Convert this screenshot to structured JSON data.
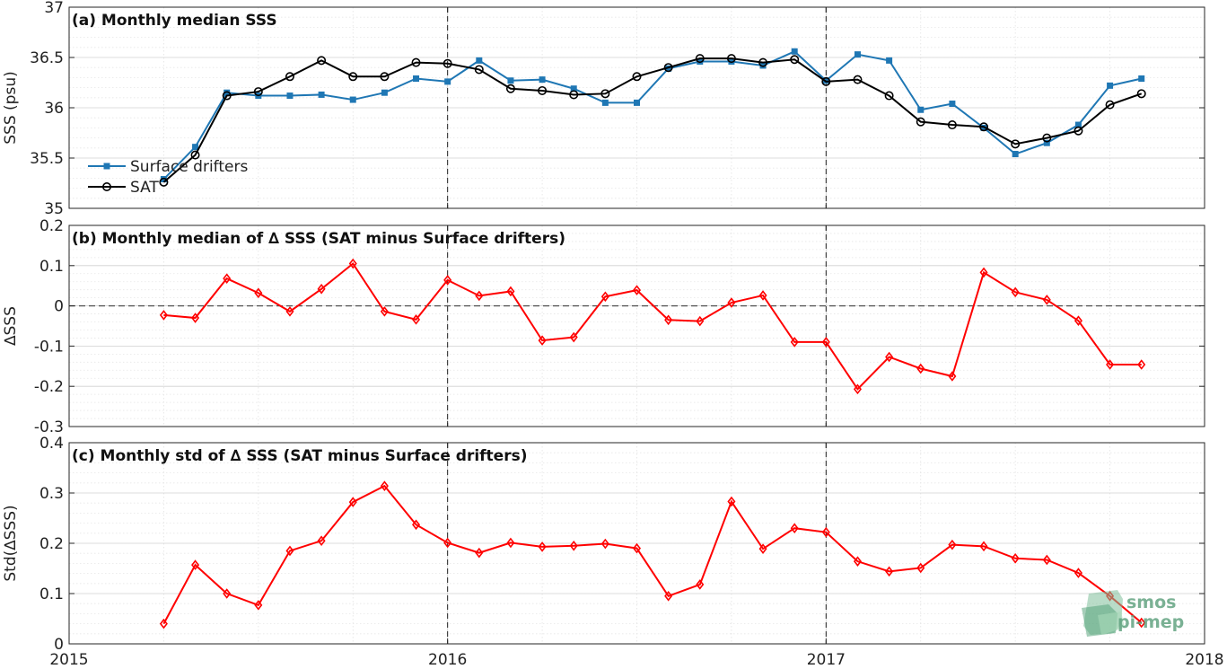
{
  "figure": {
    "x_ticks": [
      "2015",
      "2016",
      "2017",
      "2018"
    ],
    "xlim": [
      2015,
      2018
    ],
    "vlines_at": [
      2016,
      2017
    ],
    "logo": {
      "word1": "smos",
      "word2": "pi-mep"
    }
  },
  "colors": {
    "drifters": "#1F77B4",
    "sat": "#000000",
    "delta": "#FF0000",
    "frame": "#262626"
  },
  "chart_data": [
    {
      "type": "line",
      "title": "(a) Monthly median SSS",
      "ylabel": "SSS (psu)",
      "ylim": [
        35,
        37
      ],
      "y_ticks": [
        "35",
        "35.5",
        "36",
        "36.5",
        "37"
      ],
      "y_tick_values": [
        35,
        35.5,
        36,
        36.5,
        37
      ],
      "x": [
        "2015-04",
        "2015-05",
        "2015-06",
        "2015-07",
        "2015-08",
        "2015-09",
        "2015-10",
        "2015-11",
        "2015-12",
        "2016-01",
        "2016-02",
        "2016-03",
        "2016-04",
        "2016-05",
        "2016-06",
        "2016-07",
        "2016-08",
        "2016-09",
        "2016-10",
        "2016-11",
        "2016-12",
        "2017-01",
        "2017-02",
        "2017-03",
        "2017-04",
        "2017-05",
        "2017-06",
        "2017-07",
        "2017-08",
        "2017-09",
        "2017-10",
        "2017-11"
      ],
      "legend": "left",
      "series": [
        {
          "name": "Surface drifters",
          "marker": "square",
          "values": [
            35.29,
            35.61,
            36.15,
            36.12,
            36.12,
            36.13,
            36.08,
            36.15,
            36.29,
            36.26,
            36.47,
            36.27,
            36.28,
            36.19,
            36.05,
            36.05,
            36.39,
            36.46,
            36.46,
            36.42,
            36.56,
            36.27,
            36.53,
            36.47,
            35.98,
            36.04,
            35.8,
            35.54,
            35.65,
            35.83,
            36.22,
            36.29
          ]
        },
        {
          "name": "SAT",
          "marker": "circle",
          "values": [
            35.26,
            35.53,
            36.12,
            36.16,
            36.31,
            36.47,
            36.31,
            36.31,
            36.45,
            36.44,
            36.38,
            36.19,
            36.17,
            36.13,
            36.14,
            36.31,
            36.4,
            36.49,
            36.49,
            36.45,
            36.48,
            36.26,
            36.28,
            36.12,
            35.86,
            35.83,
            35.81,
            35.64,
            35.7,
            35.77,
            36.03,
            36.14
          ]
        }
      ]
    },
    {
      "type": "line",
      "title": "(b) Monthly median of ∆ SSS (SAT minus Surface drifters)",
      "ylabel": "∆SSS",
      "ylim": [
        -0.3,
        0.2
      ],
      "y_ticks": [
        "-0.3",
        "-0.2",
        "-0.1",
        "0",
        "0.1",
        "0.2"
      ],
      "y_tick_values": [
        -0.3,
        -0.2,
        -0.1,
        0,
        0.1,
        0.2
      ],
      "x": [
        "2015-04",
        "2015-05",
        "2015-06",
        "2015-07",
        "2015-08",
        "2015-09",
        "2015-10",
        "2015-11",
        "2015-12",
        "2016-01",
        "2016-02",
        "2016-03",
        "2016-04",
        "2016-05",
        "2016-06",
        "2016-07",
        "2016-08",
        "2016-09",
        "2016-10",
        "2016-11",
        "2016-12",
        "2017-01",
        "2017-02",
        "2017-03",
        "2017-04",
        "2017-05",
        "2017-06",
        "2017-07",
        "2017-08",
        "2017-09",
        "2017-10",
        "2017-11"
      ],
      "zero_line": true,
      "series": [
        {
          "marker": "diamond",
          "values": [
            -0.023,
            -0.03,
            0.068,
            0.032,
            -0.014,
            0.042,
            0.105,
            -0.014,
            -0.034,
            0.064,
            0.025,
            0.036,
            -0.086,
            -0.078,
            0.023,
            0.039,
            -0.035,
            -0.038,
            0.008,
            0.026,
            -0.09,
            -0.09,
            -0.207,
            -0.127,
            -0.156,
            -0.175,
            0.083,
            0.034,
            0.015,
            -0.037,
            -0.146,
            -0.146
          ]
        }
      ]
    },
    {
      "type": "line",
      "title": "(c) Monthly std of ∆ SSS (SAT minus Surface drifters)",
      "ylabel": "Std(∆SSS)",
      "ylim": [
        0,
        0.4
      ],
      "y_ticks": [
        "0",
        "0.1",
        "0.2",
        "0.3",
        "0.4"
      ],
      "y_tick_values": [
        0,
        0.1,
        0.2,
        0.3,
        0.4
      ],
      "x": [
        "2015-04",
        "2015-05",
        "2015-06",
        "2015-07",
        "2015-08",
        "2015-09",
        "2015-10",
        "2015-11",
        "2015-12",
        "2016-01",
        "2016-02",
        "2016-03",
        "2016-04",
        "2016-05",
        "2016-06",
        "2016-07",
        "2016-08",
        "2016-09",
        "2016-10",
        "2016-11",
        "2016-12",
        "2017-01",
        "2017-02",
        "2017-03",
        "2017-04",
        "2017-05",
        "2017-06",
        "2017-07",
        "2017-08",
        "2017-09",
        "2017-10",
        "2017-11"
      ],
      "series": [
        {
          "marker": "diamond",
          "values": [
            0.04,
            0.157,
            0.1,
            0.077,
            0.185,
            0.205,
            0.282,
            0.314,
            0.237,
            0.201,
            0.181,
            0.201,
            0.193,
            0.195,
            0.199,
            0.19,
            0.095,
            0.118,
            0.283,
            0.189,
            0.23,
            0.222,
            0.164,
            0.144,
            0.151,
            0.197,
            0.194,
            0.17,
            0.167,
            0.141,
            0.095,
            0.042
          ]
        }
      ]
    }
  ]
}
